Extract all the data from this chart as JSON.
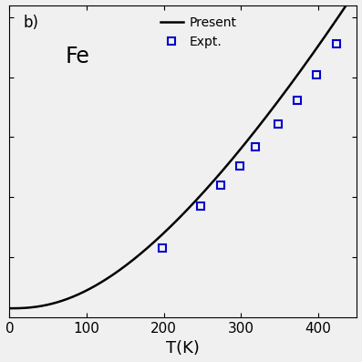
{
  "title_label": "b)",
  "element_label": "Fe",
  "xlabel": "T(K)",
  "x_ticks": [
    0,
    100,
    200,
    300,
    400
  ],
  "legend_present": "Present",
  "legend_expt": "Expt.",
  "line_color": "#000000",
  "expt_color": "#0000cc",
  "expt_x": [
    198,
    248,
    273,
    298,
    318,
    348,
    373,
    398,
    423
  ],
  "expt_y": [
    0.0058,
    0.0093,
    0.011,
    0.0126,
    0.0142,
    0.0161,
    0.0181,
    0.0202,
    0.0228
  ],
  "xlim": [
    0,
    450
  ],
  "ylim": [
    0.0,
    0.026
  ],
  "background_color": "#f0f0f0",
  "curve_a": 5.5e-08,
  "curve_b": 2.3,
  "curve_c": 0.00075,
  "curve_T_min": 0.5,
  "curve_T_max": 450
}
